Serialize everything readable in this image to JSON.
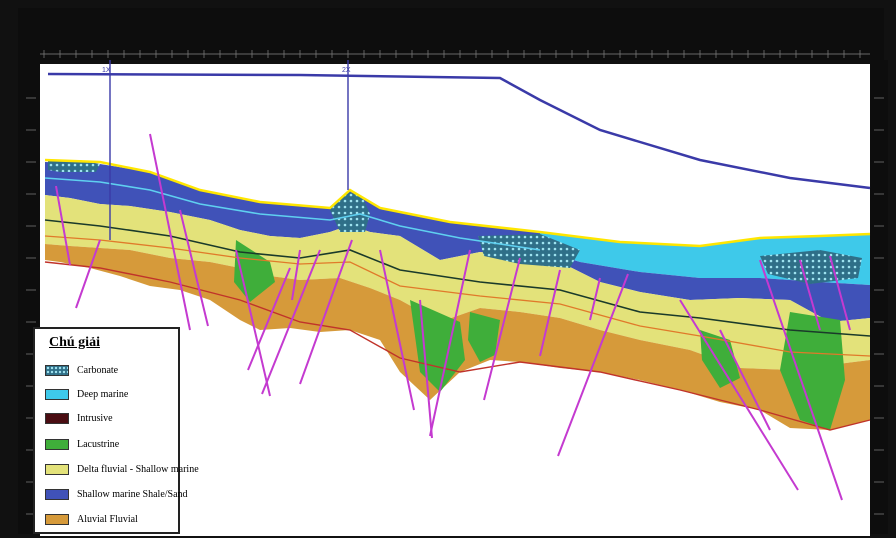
{
  "legend": {
    "title": "Chú giải",
    "items": [
      {
        "label": "Carbonate",
        "color": "#2f6f88",
        "pattern": "carbonate"
      },
      {
        "label": "Deep marine",
        "color": "#3ec9ea"
      },
      {
        "label": "Intrusive",
        "color": "#4a0d12"
      },
      {
        "label": "Lacustrine",
        "color": "#3fae3a"
      },
      {
        "label": "Delta fluvial - Shallow marine",
        "color": "#e3e27a"
      },
      {
        "label": "Shallow marine Shale/Sand",
        "color": "#4052b8"
      },
      {
        "label": "Aluvial Fluvial",
        "color": "#d69a3a"
      }
    ]
  },
  "colors": {
    "background": "#f2f2f2",
    "frame": "#111111",
    "sea_floor": "#3a3aa8",
    "fault": "#c43ad0",
    "well": "#3a3aa8",
    "horizon_top": "#ffe600"
  },
  "well_labels": [
    "1X",
    "2X"
  ]
}
